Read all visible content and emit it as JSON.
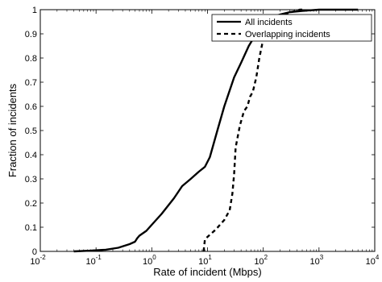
{
  "chart_data": {
    "type": "line",
    "title": "",
    "xlabel": "Rate of incident (Mbps)",
    "ylabel": "Fraction of incidents",
    "xscale": "log",
    "xlim": [
      0.01,
      10000
    ],
    "ylim": [
      0,
      1
    ],
    "grid": false,
    "legend_position": "top-right",
    "x_tick_labels": [
      {
        "base": "10",
        "exp": "-2"
      },
      {
        "base": "10",
        "exp": "-1"
      },
      {
        "base": "10",
        "exp": "0"
      },
      {
        "base": "10",
        "exp": "1"
      },
      {
        "base": "10",
        "exp": "2"
      },
      {
        "base": "10",
        "exp": "3"
      },
      {
        "base": "10",
        "exp": "4"
      }
    ],
    "y_tick_labels": [
      "0",
      "0.1",
      "0.2",
      "0.3",
      "0.4",
      "0.5",
      "0.6",
      "0.7",
      "0.8",
      "0.9",
      "1"
    ],
    "series": [
      {
        "name": "All incidents",
        "style": "solid",
        "x": [
          0.04,
          0.08,
          0.15,
          0.25,
          0.4,
          0.5,
          0.55,
          0.6,
          0.8,
          1.0,
          1.5,
          2.5,
          3.5,
          5,
          7,
          9,
          11,
          15,
          20,
          30,
          40,
          55,
          70,
          90,
          120,
          150,
          200,
          300,
          500,
          1000,
          5000
        ],
        "y": [
          0.0,
          0.003,
          0.007,
          0.015,
          0.03,
          0.04,
          0.055,
          0.065,
          0.085,
          0.11,
          0.155,
          0.22,
          0.27,
          0.3,
          0.33,
          0.35,
          0.39,
          0.5,
          0.6,
          0.72,
          0.78,
          0.85,
          0.89,
          0.92,
          0.95,
          0.97,
          0.98,
          0.99,
          0.995,
          1.0,
          1.0
        ]
      },
      {
        "name": "Overlapping incidents",
        "style": "dashed",
        "x": [
          8.5,
          9,
          10,
          14,
          20,
          25,
          28,
          30,
          32,
          38,
          45,
          52,
          58,
          65,
          75,
          85,
          100,
          130,
          170,
          230,
          320,
          450,
          550
        ],
        "y": [
          0.0,
          0.05,
          0.06,
          0.09,
          0.13,
          0.17,
          0.24,
          0.32,
          0.43,
          0.52,
          0.58,
          0.6,
          0.64,
          0.66,
          0.72,
          0.8,
          0.88,
          0.94,
          0.97,
          0.98,
          0.99,
          1.0,
          1.0
        ]
      }
    ]
  }
}
